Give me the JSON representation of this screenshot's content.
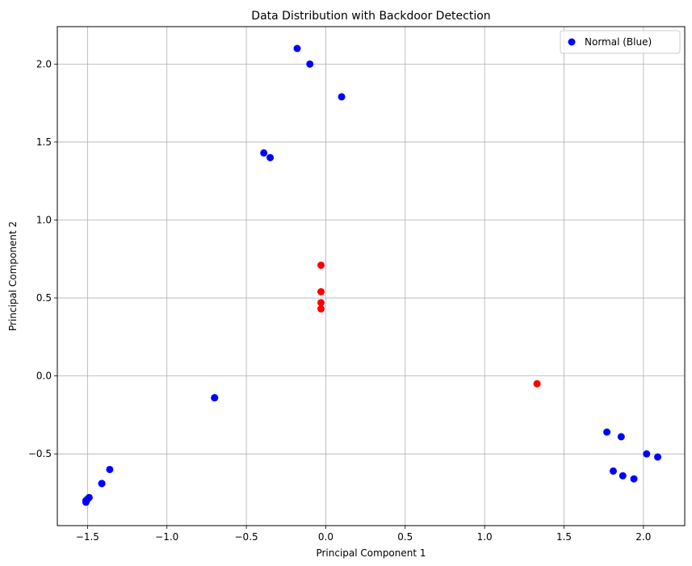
{
  "chart_data": {
    "type": "scatter",
    "title": "Data Distribution with Backdoor Detection",
    "xlabel": "Principal Component 1",
    "ylabel": "Principal Component 2",
    "xlim": [
      -1.69,
      2.26
    ],
    "ylim": [
      -0.96,
      2.24
    ],
    "xticks": [
      -1.5,
      -1.0,
      -0.5,
      0.0,
      0.5,
      1.0,
      1.5,
      2.0
    ],
    "xtick_labels": [
      "−1.5",
      "−1.0",
      "−0.5",
      "0.0",
      "0.5",
      "1.0",
      "1.5",
      "2.0"
    ],
    "yticks": [
      -0.5,
      0.0,
      0.5,
      1.0,
      1.5,
      2.0
    ],
    "ytick_labels": [
      "−0.5",
      "0.0",
      "0.5",
      "1.0",
      "1.5",
      "2.0"
    ],
    "grid": true,
    "legend_position": "top-right",
    "series": [
      {
        "name": "Normal (Blue)",
        "color": "#0000ff",
        "points": [
          [
            -0.18,
            2.1
          ],
          [
            -0.1,
            2.0
          ],
          [
            0.1,
            1.79
          ],
          [
            -0.39,
            1.43
          ],
          [
            -0.35,
            1.4
          ],
          [
            -0.7,
            -0.14
          ],
          [
            -0.7,
            -0.14
          ],
          [
            -1.36,
            -0.6
          ],
          [
            -1.41,
            -0.69
          ],
          [
            -1.41,
            -0.69
          ],
          [
            -1.49,
            -0.78
          ],
          [
            -1.5,
            -0.79
          ],
          [
            -1.51,
            -0.8
          ],
          [
            -1.51,
            -0.81
          ],
          [
            1.77,
            -0.36
          ],
          [
            1.86,
            -0.39
          ],
          [
            2.02,
            -0.5
          ],
          [
            2.09,
            -0.52
          ],
          [
            1.81,
            -0.61
          ],
          [
            1.87,
            -0.64
          ],
          [
            1.94,
            -0.66
          ]
        ]
      },
      {
        "color": "#ff0000",
        "points": [
          [
            -0.03,
            0.71
          ],
          [
            -0.03,
            0.54
          ],
          [
            -0.03,
            0.47
          ],
          [
            -0.03,
            0.43
          ],
          [
            1.33,
            -0.05
          ]
        ]
      }
    ]
  }
}
